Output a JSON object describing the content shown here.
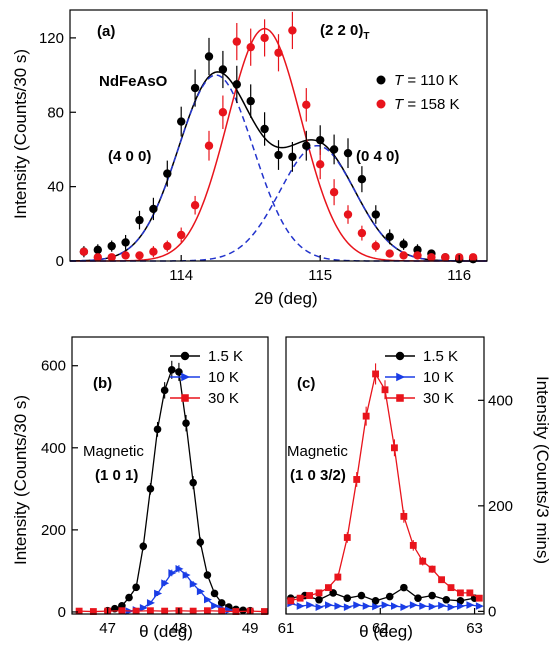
{
  "chart_data": [
    {
      "type": "scatter",
      "panel_label": "(a)",
      "sample_label": "NdFeAsO",
      "xlabel": "2θ (deg)",
      "ylabel": "Intensity (Counts/30 s)",
      "xlim": [
        113.2,
        116.2
      ],
      "ylim": [
        0,
        135
      ],
      "xticks": [
        114,
        115,
        116
      ],
      "yticks": [
        0,
        40,
        80,
        120
      ],
      "legend": {
        "placement": "right",
        "entries": [
          {
            "symbol": "T",
            "rest": " = 110 K",
            "color": "#000000"
          },
          {
            "symbol": "T",
            "rest": " = 158 K",
            "color": "#e8141c"
          }
        ]
      },
      "annotations": [
        {
          "text": "(4 0 0)",
          "x": 113.65,
          "y": 53,
          "color": "#000000"
        },
        {
          "text": "(0 4 0)",
          "x": 115.55,
          "y": 53,
          "color": "#000000"
        },
        {
          "text": "(2 2 0)",
          "subscript": "T",
          "x": 114.95,
          "y": 118,
          "color": "#e8141c"
        }
      ],
      "series": [
        {
          "name": "T = 110 K",
          "color": "#000000",
          "marker": "circle",
          "x": [
            113.3,
            113.4,
            113.5,
            113.6,
            113.7,
            113.8,
            113.9,
            114.0,
            114.1,
            114.2,
            114.3,
            114.4,
            114.5,
            114.6,
            114.7,
            114.8,
            114.9,
            115.0,
            115.1,
            115.2,
            115.3,
            115.4,
            115.5,
            115.6,
            115.7,
            115.8,
            115.9,
            116.0,
            116.1
          ],
          "y": [
            5,
            6,
            8,
            10,
            22,
            28,
            47,
            75,
            93,
            110,
            103,
            95,
            86,
            71,
            57,
            56,
            62,
            65,
            60,
            58,
            44,
            25,
            13,
            9,
            6,
            4,
            2,
            1,
            1
          ],
          "err": [
            3,
            3,
            3,
            4,
            5,
            6,
            7,
            8,
            10,
            10,
            10,
            10,
            9,
            9,
            8,
            8,
            8,
            8,
            8,
            8,
            7,
            5,
            4,
            3,
            3,
            2,
            2,
            2,
            2
          ]
        },
        {
          "name": "T = 158 K",
          "color": "#e8141c",
          "marker": "circle",
          "x": [
            113.3,
            113.4,
            113.5,
            113.6,
            113.7,
            113.8,
            113.9,
            114.0,
            114.1,
            114.2,
            114.3,
            114.4,
            114.5,
            114.6,
            114.7,
            114.8,
            114.9,
            115.0,
            115.1,
            115.2,
            115.3,
            115.4,
            115.5,
            115.6,
            115.7,
            115.8,
            115.9,
            116.0,
            116.1
          ],
          "y": [
            5,
            2,
            2,
            3,
            3,
            5,
            8,
            14,
            30,
            62,
            80,
            118,
            115,
            120,
            112,
            124,
            84,
            52,
            37,
            25,
            15,
            8,
            4,
            3,
            3,
            2,
            2,
            2,
            2
          ],
          "err": [
            2,
            2,
            2,
            2,
            2,
            3,
            3,
            4,
            5,
            8,
            9,
            10,
            10,
            10,
            10,
            10,
            9,
            8,
            7,
            5,
            4,
            3,
            2,
            2,
            2,
            2,
            2,
            2,
            2
          ]
        }
      ],
      "fits": [
        {
          "color": "#000000",
          "style": "solid",
          "peaks": [
            {
              "c": 114.25,
              "a": 100,
              "w": 0.27
            },
            {
              "c": 114.98,
              "a": 62,
              "w": 0.27
            }
          ]
        },
        {
          "color": "#e8141c",
          "style": "solid",
          "peaks": [
            {
              "c": 114.6,
              "a": 125,
              "w": 0.265
            }
          ]
        },
        {
          "color": "#2233cc",
          "style": "dashed",
          "peaks": [
            {
              "c": 114.25,
              "a": 100,
              "w": 0.27
            }
          ]
        },
        {
          "color": "#2233cc",
          "style": "dashed",
          "peaks": [
            {
              "c": 114.98,
              "a": 62,
              "w": 0.27
            }
          ]
        }
      ]
    },
    {
      "type": "line",
      "panel_label": "(b)",
      "annotation_line1": "Magnetic",
      "annotation_line2": "(1 0 1)",
      "xlabel": "θ (deg)",
      "ylabel": "Intensity (Counts/30 s)",
      "xlim": [
        46.5,
        49.25
      ],
      "ylim": [
        -5,
        670
      ],
      "xticks": [
        47,
        48,
        49
      ],
      "yticks": [
        0,
        200,
        400,
        600
      ],
      "legend": {
        "placement": "top-right",
        "entries": [
          {
            "label": "1.5 K",
            "color": "#000000",
            "marker": "circle"
          },
          {
            "label": "10 K",
            "color": "#1a3de6",
            "marker": "triangle"
          },
          {
            "label": "30 K",
            "color": "#e8141c",
            "marker": "square"
          }
        ]
      },
      "series": [
        {
          "name": "1.5 K",
          "color": "#000000",
          "marker": "circle",
          "x": [
            47.0,
            47.1,
            47.2,
            47.3,
            47.4,
            47.5,
            47.6,
            47.7,
            47.8,
            47.9,
            48.0,
            48.1,
            48.2,
            48.3,
            48.4,
            48.5,
            48.6,
            48.7,
            48.8,
            48.9,
            49.0
          ],
          "y": [
            3,
            8,
            15,
            35,
            60,
            160,
            300,
            445,
            540,
            590,
            585,
            460,
            315,
            170,
            90,
            45,
            22,
            12,
            6,
            4,
            3
          ],
          "err": [
            2,
            2,
            3,
            5,
            6,
            10,
            14,
            18,
            20,
            22,
            22,
            20,
            16,
            12,
            8,
            6,
            4,
            3,
            2,
            2,
            2
          ]
        },
        {
          "name": "10 K",
          "color": "#1a3de6",
          "marker": "triangle",
          "x": [
            47.3,
            47.4,
            47.5,
            47.6,
            47.7,
            47.8,
            47.9,
            48.0,
            48.1,
            48.2,
            48.3,
            48.4,
            48.5,
            48.6,
            48.7
          ],
          "y": [
            2,
            5,
            10,
            22,
            45,
            70,
            95,
            105,
            90,
            68,
            50,
            30,
            15,
            8,
            4
          ],
          "err": [
            2,
            2,
            3,
            4,
            6,
            7,
            8,
            9,
            8,
            7,
            6,
            5,
            4,
            3,
            2
          ]
        },
        {
          "name": "30 K",
          "color": "#e8141c",
          "marker": "square",
          "x": [
            46.6,
            46.8,
            47.0,
            47.2,
            47.4,
            47.6,
            47.8,
            48.0,
            48.2,
            48.4,
            48.6,
            48.8,
            49.0,
            49.2
          ],
          "y": [
            2,
            1,
            2,
            3,
            2,
            3,
            2,
            3,
            2,
            3,
            2,
            1,
            2,
            1
          ],
          "err": [
            2,
            2,
            2,
            2,
            2,
            2,
            2,
            2,
            2,
            2,
            2,
            2,
            2,
            2
          ]
        }
      ]
    },
    {
      "type": "line",
      "panel_label": "(c)",
      "annotation_line1": "Magnetic",
      "annotation_line2": "(1 0 3/2)",
      "xlabel": "θ (deg)",
      "ylabel": "Intensity (Counts/3 mins)",
      "xlim": [
        61.0,
        63.1
      ],
      "ylim": [
        -5,
        520
      ],
      "xticks": [
        61,
        62,
        63
      ],
      "yticks": [
        0,
        200,
        400
      ],
      "legend": {
        "placement": "top-right",
        "entries": [
          {
            "label": "1.5 K",
            "color": "#000000",
            "marker": "circle"
          },
          {
            "label": "10 K",
            "color": "#1a3de6",
            "marker": "triangle"
          },
          {
            "label": "30 K",
            "color": "#e8141c",
            "marker": "square"
          }
        ]
      },
      "series": [
        {
          "name": "1.5 K",
          "color": "#000000",
          "marker": "circle",
          "x": [
            61.05,
            61.2,
            61.35,
            61.5,
            61.65,
            61.8,
            61.95,
            62.1,
            62.25,
            62.4,
            62.55,
            62.7,
            62.85,
            63.0
          ],
          "y": [
            25,
            30,
            22,
            35,
            25,
            30,
            20,
            28,
            45,
            25,
            30,
            22,
            20,
            25
          ],
          "err": [
            5,
            5,
            5,
            5,
            5,
            5,
            5,
            5,
            6,
            5,
            5,
            5,
            5,
            5
          ]
        },
        {
          "name": "10 K",
          "color": "#1a3de6",
          "marker": "triangle",
          "x": [
            61.05,
            61.15,
            61.25,
            61.35,
            61.45,
            61.55,
            61.65,
            61.75,
            61.85,
            61.95,
            62.05,
            62.15,
            62.25,
            62.35,
            62.45,
            62.55,
            62.65,
            62.75,
            62.85,
            62.95,
            63.05
          ],
          "y": [
            15,
            10,
            12,
            8,
            12,
            10,
            8,
            12,
            10,
            9,
            12,
            10,
            8,
            12,
            10,
            9,
            11,
            8,
            10,
            12,
            10
          ],
          "err": [
            4,
            4,
            4,
            4,
            4,
            4,
            4,
            4,
            4,
            4,
            4,
            4,
            4,
            4,
            4,
            4,
            4,
            4,
            4,
            4,
            4
          ]
        },
        {
          "name": "30 K",
          "color": "#e8141c",
          "marker": "square",
          "x": [
            61.05,
            61.15,
            61.25,
            61.35,
            61.45,
            61.55,
            61.65,
            61.75,
            61.85,
            61.95,
            62.05,
            62.15,
            62.25,
            62.35,
            62.45,
            62.55,
            62.65,
            62.75,
            62.85,
            62.95,
            63.05
          ],
          "y": [
            20,
            25,
            30,
            35,
            45,
            65,
            140,
            250,
            370,
            450,
            420,
            310,
            180,
            125,
            95,
            80,
            60,
            45,
            35,
            35,
            25
          ],
          "err": [
            4,
            4,
            5,
            5,
            6,
            7,
            10,
            14,
            18,
            20,
            18,
            16,
            12,
            10,
            8,
            7,
            6,
            6,
            5,
            5,
            4
          ]
        }
      ]
    }
  ]
}
